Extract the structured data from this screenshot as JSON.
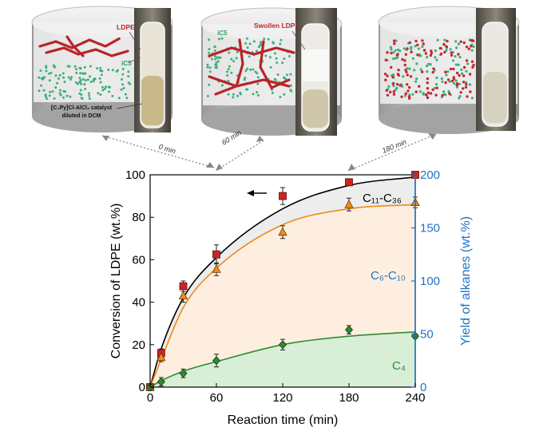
{
  "panels": [
    {
      "labels": [
        "LDPE",
        "iC5"
      ],
      "catalyst_line1": "[C₄Py]Cl-AlCl₃ catalyst",
      "catalyst_line2": "diluted in DCM",
      "time": "0 min"
    },
    {
      "labels": [
        "iC5",
        "Swollen LDPE"
      ],
      "time": "60 min"
    },
    {
      "labels": [],
      "time": "180 min"
    }
  ],
  "colors": {
    "conversion": "#d0231f",
    "c6c10": "#f08a1a",
    "c4": "#2e8b2e",
    "right_axis": "#1f74c4",
    "fill_c11": "#ededed",
    "fill_c6": "#fdeee0",
    "fill_c4": "#d9eed6"
  },
  "chart_data": {
    "type": "scatter",
    "xlabel": "Reaction time (min)",
    "ylabel": "Conversion of LDPE (wt.%)",
    "y2label": "Yield of alkanes  (wt.%)",
    "xlim": [
      0,
      240
    ],
    "ylim": [
      0,
      100
    ],
    "y2lim": [
      0,
      200
    ],
    "xticks": [
      0,
      60,
      120,
      180,
      240
    ],
    "yticks": [
      0,
      20,
      40,
      60,
      80,
      100
    ],
    "y2ticks": [
      0,
      50,
      100,
      150,
      200
    ],
    "annotations": {
      "c11": "C₁₁-C₃₆",
      "c6": "C₆-C₁₀",
      "c4": "C₄"
    },
    "series": [
      {
        "name": "Conversion of LDPE",
        "axis": "left",
        "marker": "square",
        "x": [
          0,
          10,
          30,
          60,
          120,
          180,
          240
        ],
        "y": [
          0,
          16,
          47.5,
          62.5,
          90,
          96.5,
          100
        ],
        "err": [
          0,
          2,
          2.5,
          4.5,
          4,
          1.5,
          1
        ]
      },
      {
        "name": "C6-C10",
        "axis": "right",
        "marker": "triangle",
        "x": [
          0,
          10,
          30,
          60,
          120,
          180,
          240
        ],
        "y": [
          0,
          28,
          86,
          111,
          146,
          172,
          174
        ],
        "err": [
          0,
          4,
          6,
          6,
          6,
          6,
          5
        ]
      },
      {
        "name": "C4",
        "axis": "right",
        "marker": "diamond",
        "x": [
          0,
          10,
          30,
          60,
          120,
          180,
          240
        ],
        "y": [
          0,
          5,
          13,
          25,
          40,
          54,
          48
        ],
        "err": [
          0,
          4,
          4,
          6,
          5,
          4,
          2
        ]
      }
    ]
  }
}
